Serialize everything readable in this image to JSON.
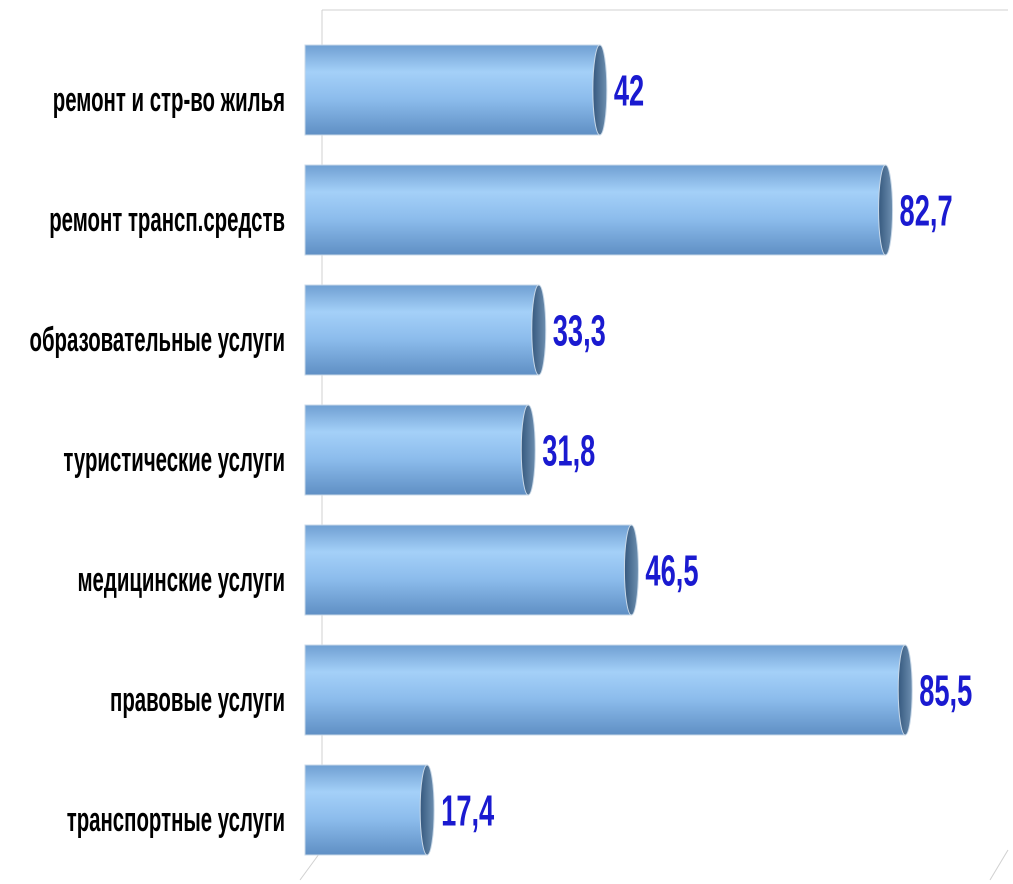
{
  "chart_data": {
    "type": "bar",
    "orientation": "horizontal",
    "categories": [
      "ремонт и стр-во жилья",
      "ремонт трансп.средств",
      "образовательные услуги",
      "туристические услуги",
      "медицинские услуги",
      "правовые услуги",
      "транспортные услуги"
    ],
    "values": [
      42,
      82.7,
      33.3,
      31.8,
      46.5,
      85.5,
      17.4
    ],
    "value_labels": [
      "42",
      "82,7",
      "33,3",
      "31,8",
      "46,5",
      "85,5",
      "17,4"
    ],
    "color": "#8fbfee",
    "xlim": [
      0,
      100
    ]
  }
}
